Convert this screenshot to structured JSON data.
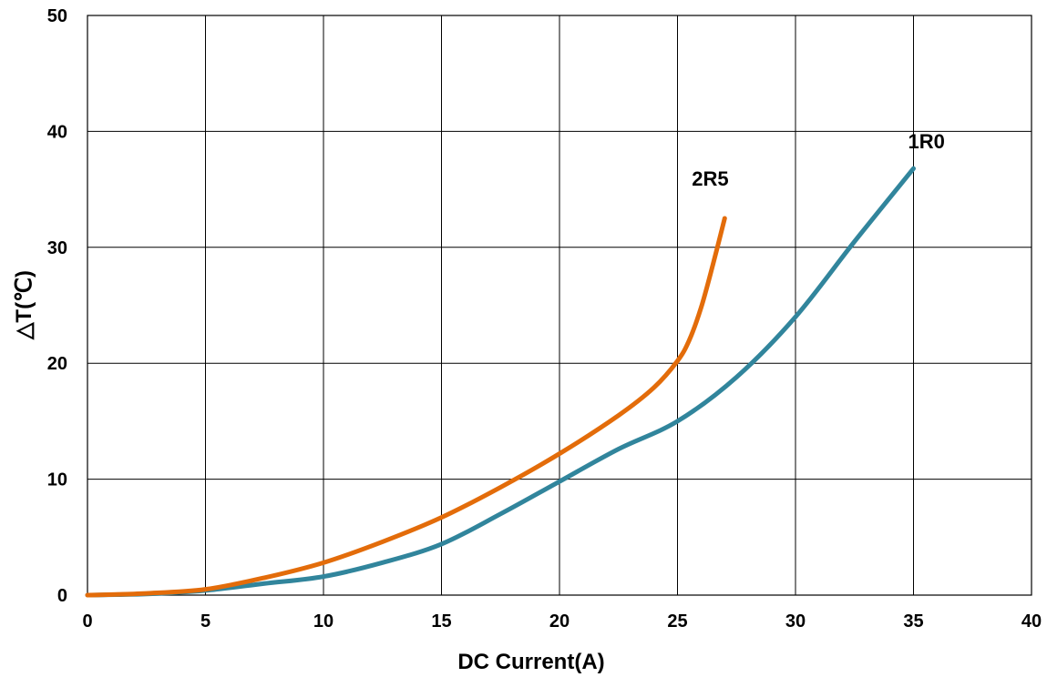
{
  "chart_data": {
    "type": "line",
    "xlabel": "DC Current(A)",
    "ylabel": "△T(℃)",
    "xlim": [
      0,
      40
    ],
    "ylim": [
      0,
      50
    ],
    "xticks": [
      0,
      5,
      10,
      15,
      20,
      25,
      30,
      35,
      40
    ],
    "yticks": [
      0,
      10,
      20,
      30,
      40,
      50
    ],
    "xtick_labels": [
      "0",
      "5",
      "10",
      "15",
      "20",
      "25",
      "30",
      "35",
      "40"
    ],
    "ytick_labels": [
      "0",
      "10",
      "20",
      "30",
      "40",
      "50"
    ],
    "grid": true,
    "legend": "none",
    "series": [
      {
        "name": "1R0",
        "color": "#31859c",
        "x": [
          0,
          2.5,
          5,
          7.5,
          10,
          12.5,
          15,
          17.5,
          20,
          22.5,
          25,
          27.5,
          30,
          32.5,
          35
        ],
        "y": [
          0,
          0.1,
          0.4,
          1.0,
          1.6,
          2.8,
          4.4,
          7.0,
          9.8,
          12.6,
          15.0,
          18.8,
          24.0,
          30.5,
          36.8
        ]
      },
      {
        "name": "2R5",
        "color": "#e36c0a",
        "x": [
          0,
          2.5,
          5,
          7.5,
          10,
          12.5,
          15,
          17.5,
          20,
          22.5,
          24,
          25,
          25.5,
          26,
          26.5,
          27
        ],
        "y": [
          0,
          0.15,
          0.5,
          1.5,
          2.8,
          4.6,
          6.7,
          9.3,
          12.2,
          15.5,
          17.9,
          20.2,
          22.0,
          24.8,
          28.5,
          32.5
        ]
      }
    ]
  }
}
